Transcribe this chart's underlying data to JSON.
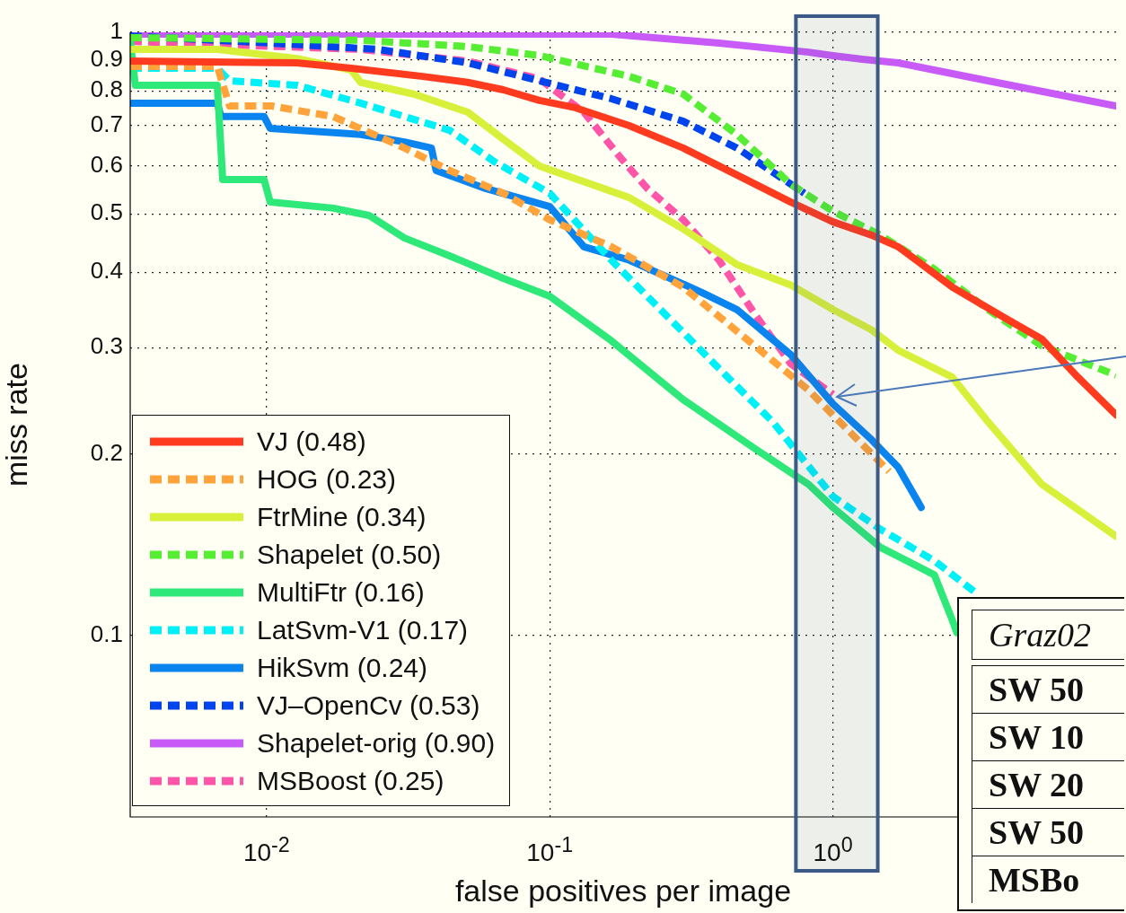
{
  "chart_data": {
    "type": "line",
    "xlabel": "false positives per image",
    "ylabel": "miss rate",
    "log": "xy",
    "grid": true,
    "legend": "bottom left",
    "marker": "none",
    "xlim": [
      0.0033,
      10
    ],
    "xticks": [
      {
        "value": 0.01,
        "label": "10$^{-2}$"
      },
      {
        "value": 0.1,
        "label": "10$^{-1}$"
      },
      {
        "value": 1,
        "label": "10$^{0}$"
      }
    ],
    "ylim": [
      0.05,
      1
    ],
    "yticks": [
      0.1,
      0.2,
      0.3,
      0.4,
      0.5,
      0.6,
      0.7,
      0.8,
      0.9,
      1
    ],
    "bands": [
      {
        "axis": "x",
        "from": 0.74,
        "to": 1.44,
        "color": "#3b5a85"
      }
    ],
    "annotations": [
      "Graz02",
      "SW 50",
      "SW 10",
      "SW 20",
      "SW 50",
      "MSBo"
    ],
    "series": [
      {
        "name": "VJ (0.48)",
        "color": "#ff3b1f",
        "line_style": "solid",
        "x": [
          0.0033,
          0.0128,
          0.0199,
          0.0356,
          0.0513,
          0.0685,
          0.092,
          0.123,
          0.191,
          0.296,
          0.458,
          0.71,
          1,
          1.37,
          1.7,
          2.64,
          4.09,
          5.47,
          7.33,
          10
        ],
        "values": [
          0.896,
          0.89,
          0.872,
          0.845,
          0.826,
          0.803,
          0.771,
          0.75,
          0.7,
          0.643,
          0.58,
          0.523,
          0.485,
          0.461,
          0.441,
          0.378,
          0.335,
          0.31,
          0.268,
          0.232
        ]
      },
      {
        "name": "HOG (0.23)",
        "color": "#ffa33a",
        "line_style": "dashed",
        "x": [
          0.0033,
          0.0067,
          0.0074,
          0.0104,
          0.0172,
          0.0307,
          0.0443,
          0.0685,
          0.1,
          0.165,
          0.296,
          0.53,
          0.821,
          1,
          1.58
        ],
        "values": [
          0.878,
          0.878,
          0.755,
          0.755,
          0.725,
          0.643,
          0.59,
          0.541,
          0.489,
          0.441,
          0.378,
          0.302,
          0.255,
          0.232,
          0.187
        ]
      },
      {
        "name": "FtrMine (0.34)",
        "color": "#d8f03a",
        "line_style": "solid",
        "x": [
          0.0033,
          0.0067,
          0.0128,
          0.0199,
          0.0215,
          0.0331,
          0.0514,
          0.0685,
          0.092,
          0.191,
          0.296,
          0.458,
          0.71,
          1,
          1.37,
          1.7,
          2.64,
          3.53,
          5.47,
          10
        ],
        "values": [
          0.937,
          0.937,
          0.905,
          0.866,
          0.826,
          0.79,
          0.737,
          0.665,
          0.6,
          0.532,
          0.472,
          0.412,
          0.381,
          0.347,
          0.321,
          0.297,
          0.268,
          0.226,
          0.178,
          0.146
        ]
      },
      {
        "name": "Shapelet (0.50)",
        "color": "#55ee33",
        "line_style": "dashed",
        "x": [
          0.0033,
          0.0215,
          0.0514,
          0.092,
          0.191,
          0.296,
          0.458,
          0.71,
          1,
          1.47,
          2.28,
          3.53,
          5.47,
          10
        ],
        "values": [
          0.98,
          0.97,
          0.947,
          0.915,
          0.845,
          0.79,
          0.677,
          0.56,
          0.505,
          0.461,
          0.405,
          0.347,
          0.302,
          0.27
        ]
      },
      {
        "name": "MultiFtr (0.16)",
        "color": "#2ee87a",
        "line_style": "solid",
        "x": [
          0.0033,
          0.00344,
          0.0067,
          0.007,
          0.0098,
          0.0103,
          0.0172,
          0.023,
          0.0307,
          0.0443,
          0.0685,
          0.1,
          0.165,
          0.296,
          0.53,
          0.821,
          1,
          1.47,
          2.28,
          2.64,
          2.74
        ],
        "values": [
          0.97,
          0.817,
          0.817,
          0.57,
          0.57,
          0.523,
          0.511,
          0.497,
          0.456,
          0.426,
          0.391,
          0.365,
          0.308,
          0.246,
          0.204,
          0.178,
          0.163,
          0.14,
          0.126,
          0.106,
          0.101
        ]
      },
      {
        "name": "LatSvm-V1 (0.17)",
        "color": "#00f0f8",
        "line_style": "dashed",
        "x": [
          0.0033,
          0.0067,
          0.0074,
          0.0128,
          0.0215,
          0.0307,
          0.0443,
          0.0638,
          0.1,
          0.165,
          0.296,
          0.396,
          0.613,
          1,
          1.47,
          2.28,
          3.17
        ],
        "values": [
          0.872,
          0.872,
          0.831,
          0.817,
          0.763,
          0.725,
          0.688,
          0.61,
          0.541,
          0.419,
          0.318,
          0.277,
          0.226,
          0.17,
          0.15,
          0.133,
          0.118
        ]
      },
      {
        "name": "HikSvm (0.24)",
        "color": "#0a85f0",
        "line_style": "solid",
        "x": [
          0.0033,
          0.0067,
          0.0069,
          0.0098,
          0.0103,
          0.0215,
          0.0307,
          0.0382,
          0.0397,
          0.0593,
          0.1,
          0.132,
          0.191,
          0.342,
          0.458,
          0.71,
          1,
          1.37,
          1.7,
          2.05
        ],
        "values": [
          0.763,
          0.763,
          0.725,
          0.725,
          0.693,
          0.677,
          0.658,
          0.643,
          0.59,
          0.551,
          0.514,
          0.441,
          0.419,
          0.371,
          0.347,
          0.292,
          0.242,
          0.211,
          0.19,
          0.163
        ]
      },
      {
        "name": "VJ–OpenCv (0.53)",
        "color": "#0044ee",
        "line_style": "dashed",
        "x": [
          0.0033,
          0.0103,
          0.0247,
          0.0514,
          0.092,
          0.165,
          0.296,
          0.458,
          0.71,
          0.792
        ],
        "values": [
          0.986,
          0.96,
          0.937,
          0.89,
          0.831,
          0.776,
          0.712,
          0.643,
          0.56,
          0.541
        ]
      },
      {
        "name": "Shapelet-orig (0.90)",
        "color": "#c85af8",
        "line_style": "solid",
        "x": [
          0.0033,
          0.165,
          0.396,
          0.821,
          1,
          1.27,
          1.7,
          3.53,
          10
        ],
        "values": [
          0.993,
          0.993,
          0.96,
          0.927,
          0.915,
          0.902,
          0.89,
          0.831,
          0.755
        ]
      },
      {
        "name": "MSBoost (0.25)",
        "color": "#ff55a8",
        "line_style": "dashed",
        "x": [
          0.0033,
          0.0215,
          0.0514,
          0.092,
          0.132,
          0.177,
          0.221,
          0.296,
          0.396,
          0.53,
          0.71,
          1
        ],
        "values": [
          0.966,
          0.937,
          0.896,
          0.837,
          0.737,
          0.621,
          0.551,
          0.489,
          0.419,
          0.341,
          0.282,
          0.251
        ]
      }
    ]
  }
}
